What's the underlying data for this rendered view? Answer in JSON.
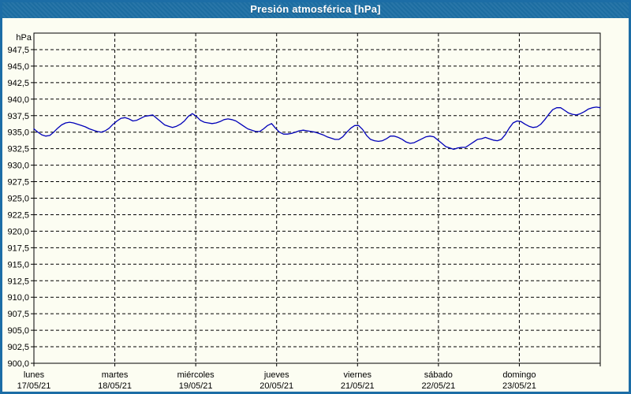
{
  "window": {
    "title": "Presión atmosférica [hPa]"
  },
  "colors": {
    "frame_blue": "#1c6da6",
    "titlebar_blue": "#1d6fa4",
    "title_text": "#ffffff",
    "background_ivory": "#fcfdf2",
    "grid_black": "#000000",
    "series_blue": "#0000b8"
  },
  "chart_data": {
    "type": "line",
    "title": "Presión atmosférica [hPa]",
    "ylabel": "hPa",
    "xlabel": "",
    "ylim": [
      900,
      950
    ],
    "grid": "dashed horizontal and vertical, black on ivory",
    "legend_position": "none",
    "y_axis": {
      "unit_label": "hPa",
      "min": 900,
      "max": 950,
      "tick_step": 2.5,
      "tick_labels": [
        "947,5",
        "945,0",
        "942,5",
        "940,0",
        "937,5",
        "935,0",
        "932,5",
        "930,0",
        "927,5",
        "925,0",
        "922,5",
        "920,0",
        "917,5",
        "915,0",
        "912,5",
        "910,0",
        "907,5",
        "905,0",
        "902,5",
        "900,0"
      ]
    },
    "x_axis": {
      "days": [
        {
          "name": "lunes",
          "date": "17/05/21"
        },
        {
          "name": "martes",
          "date": "18/05/21"
        },
        {
          "name": "miércoles",
          "date": "19/05/21"
        },
        {
          "name": "jueves",
          "date": "20/05/21"
        },
        {
          "name": "viernes",
          "date": "21/05/21"
        },
        {
          "name": "sábado",
          "date": "22/05/21"
        },
        {
          "name": "domingo",
          "date": "23/05/21"
        }
      ]
    },
    "series": [
      {
        "name": "Presión atmosférica",
        "color": "#0000b8",
        "values": [
          935.5,
          935.0,
          934.6,
          934.4,
          934.5,
          935.0,
          935.6,
          936.1,
          936.4,
          936.5,
          936.4,
          936.2,
          936.0,
          935.8,
          935.5,
          935.3,
          935.1,
          935.0,
          935.2,
          935.6,
          936.2,
          936.7,
          937.1,
          937.2,
          937.0,
          936.7,
          936.8,
          937.1,
          937.4,
          937.5,
          937.6,
          937.1,
          936.6,
          936.1,
          935.9,
          935.7,
          935.9,
          936.2,
          936.7,
          937.4,
          937.8,
          937.4,
          936.8,
          936.5,
          936.4,
          936.3,
          936.4,
          936.6,
          936.9,
          937.0,
          936.9,
          936.7,
          936.3,
          935.9,
          935.5,
          935.3,
          935.1,
          935.1,
          935.5,
          936.0,
          936.3,
          935.6,
          935.0,
          934.7,
          934.7,
          934.8,
          935.0,
          935.2,
          935.3,
          935.2,
          935.1,
          935.0,
          934.8,
          934.6,
          934.3,
          934.1,
          933.9,
          933.9,
          934.3,
          935.0,
          935.6,
          936.0,
          936.0,
          935.4,
          934.5,
          933.9,
          933.7,
          933.6,
          933.7,
          934.0,
          934.4,
          934.4,
          934.2,
          933.9,
          933.5,
          933.3,
          933.4,
          933.7,
          934.0,
          934.3,
          934.4,
          934.3,
          933.8,
          933.3,
          932.8,
          932.6,
          932.4,
          932.6,
          932.7,
          932.7,
          933.1,
          933.5,
          933.9,
          934.0,
          934.2,
          934.0,
          933.8,
          933.7,
          933.9,
          934.6,
          935.6,
          936.4,
          936.7,
          936.6,
          936.2,
          935.9,
          935.7,
          935.8,
          936.2,
          936.9,
          937.7,
          938.4,
          938.7,
          938.7,
          938.3,
          937.9,
          937.7,
          937.6,
          937.8,
          938.1,
          938.5,
          938.7,
          938.8,
          938.7
        ]
      }
    ]
  }
}
